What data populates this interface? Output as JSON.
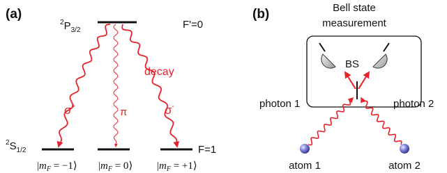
{
  "panel_a": {
    "label": "(a)",
    "excited_state": {
      "superscript": "2",
      "term": "P",
      "subscript": "3/2",
      "hyperfine": "F'=0"
    },
    "ground_state": {
      "superscript": "2",
      "term": "S",
      "subscript": "1/2",
      "hyperfine": "F=1"
    },
    "decay_label": "decay",
    "transitions": [
      {
        "symbol": "σ",
        "superscript": "+"
      },
      {
        "symbol": "π"
      },
      {
        "symbol": "σ",
        "superscript": "-"
      }
    ],
    "sublevels": [
      {
        "symbol": "m",
        "subscript": "F",
        "value": " = −1"
      },
      {
        "symbol": "m",
        "subscript": "F",
        "value": " = 0"
      },
      {
        "symbol": "m",
        "subscript": "F",
        "value": " = +1"
      }
    ]
  },
  "panel_b": {
    "label": "(b)",
    "measurement_title": [
      "Bell state",
      "measurement"
    ],
    "beam_splitter": "BS",
    "photons": [
      "photon 1",
      "photon 2"
    ],
    "atoms": [
      "atom 1",
      "atom 2"
    ]
  }
}
